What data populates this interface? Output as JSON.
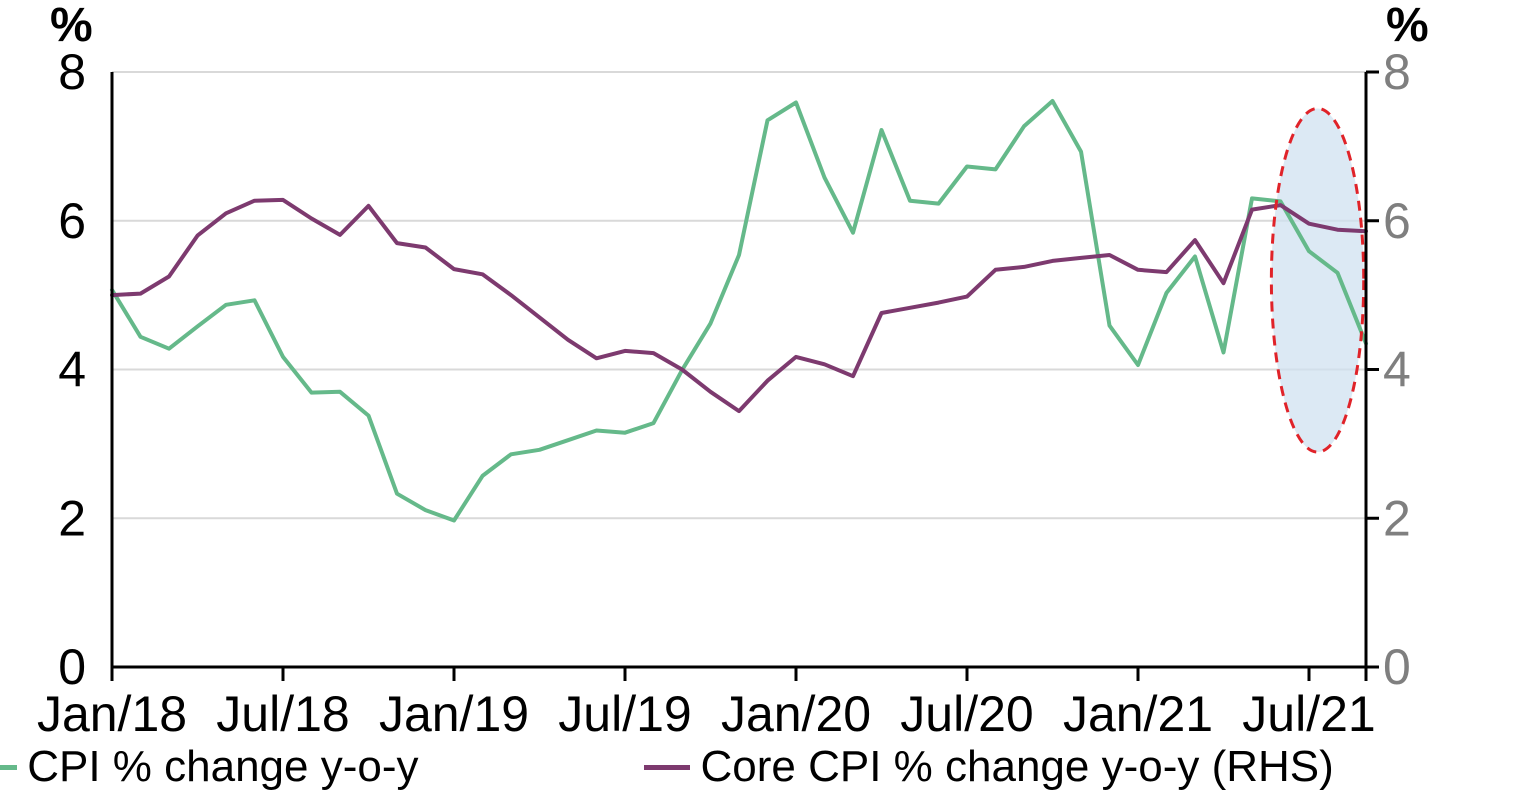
{
  "page": {
    "background": "#ffffff"
  },
  "chart_data": {
    "type": "line",
    "title": "",
    "unit_label_left": "%",
    "unit_label_right": "%",
    "grid": "horizontal",
    "gridline_color": "#d9d9d9",
    "axis_color": "#000000",
    "left_tick_label_color": "#000000",
    "right_tick_label_color": "#7f7f7f",
    "ylim_left": [
      0,
      8
    ],
    "ylim_right": [
      0,
      8
    ],
    "yticks": [
      0,
      2,
      4,
      6,
      8
    ],
    "x_tick_every": 6,
    "months": [
      "Jan/18",
      "Feb/18",
      "Mar/18",
      "Apr/18",
      "May/18",
      "Jun/18",
      "Jul/18",
      "Aug/18",
      "Sep/18",
      "Oct/18",
      "Nov/18",
      "Dec/18",
      "Jan/19",
      "Feb/19",
      "Mar/19",
      "Apr/19",
      "May/19",
      "Jun/19",
      "Jul/19",
      "Aug/19",
      "Sep/19",
      "Oct/19",
      "Nov/19",
      "Dec/19",
      "Jan/20",
      "Feb/20",
      "Mar/20",
      "Apr/20",
      "May/20",
      "Jun/20",
      "Jul/20",
      "Aug/20",
      "Sep/20",
      "Oct/20",
      "Nov/20",
      "Dec/20",
      "Jan/21",
      "Feb/21",
      "Mar/21",
      "Apr/21",
      "May/21",
      "Jun/21",
      "Jul/21",
      "Aug/21",
      "Sep/21"
    ],
    "x_tick_labels": [
      "Jan/18",
      "Jul/18",
      "Jan/19",
      "Jul/19",
      "Jan/20",
      "Jul/20",
      "Jan/21",
      "Jul/21"
    ],
    "legend_position": "bottom",
    "series": [
      {
        "name": "CPI % change y-o-y",
        "axis": "left",
        "color": "#65b98a",
        "values": [
          5.07,
          4.44,
          4.28,
          4.58,
          4.87,
          4.93,
          4.17,
          3.69,
          3.7,
          3.38,
          2.33,
          2.11,
          1.97,
          2.57,
          2.86,
          2.92,
          3.05,
          3.18,
          3.15,
          3.28,
          3.99,
          4.62,
          5.54,
          7.35,
          7.59,
          6.58,
          5.84,
          7.22,
          6.27,
          6.23,
          6.73,
          6.69,
          7.27,
          7.61,
          6.93,
          4.59,
          4.06,
          5.03,
          5.52,
          4.23,
          6.3,
          6.26,
          5.59,
          5.3,
          4.35
        ]
      },
      {
        "name": "Core CPI % change y-o-y (RHS)",
        "axis": "right",
        "color": "#7d3a6f",
        "values": [
          5.0,
          5.02,
          5.25,
          5.8,
          6.1,
          6.27,
          6.28,
          6.03,
          5.81,
          6.2,
          5.7,
          5.64,
          5.35,
          5.28,
          5.0,
          4.7,
          4.4,
          4.15,
          4.25,
          4.22,
          4.0,
          3.7,
          3.44,
          3.85,
          4.17,
          4.07,
          3.91,
          4.76,
          4.83,
          4.9,
          4.98,
          5.34,
          5.38,
          5.46,
          5.5,
          5.54,
          5.34,
          5.31,
          5.74,
          5.16,
          6.15,
          6.21,
          5.96,
          5.88,
          5.86
        ]
      }
    ],
    "highlight": {
      "shape": "ellipse",
      "purpose": "recent-months-highlight",
      "x_center_index": 42.3,
      "x_radius_index": 1.62,
      "value_center": 5.2,
      "value_radius": 2.31,
      "fill_color": "#cfe1f0",
      "fill_opacity": 0.72,
      "border_color": "#e02329",
      "border_style": "dashed"
    }
  }
}
